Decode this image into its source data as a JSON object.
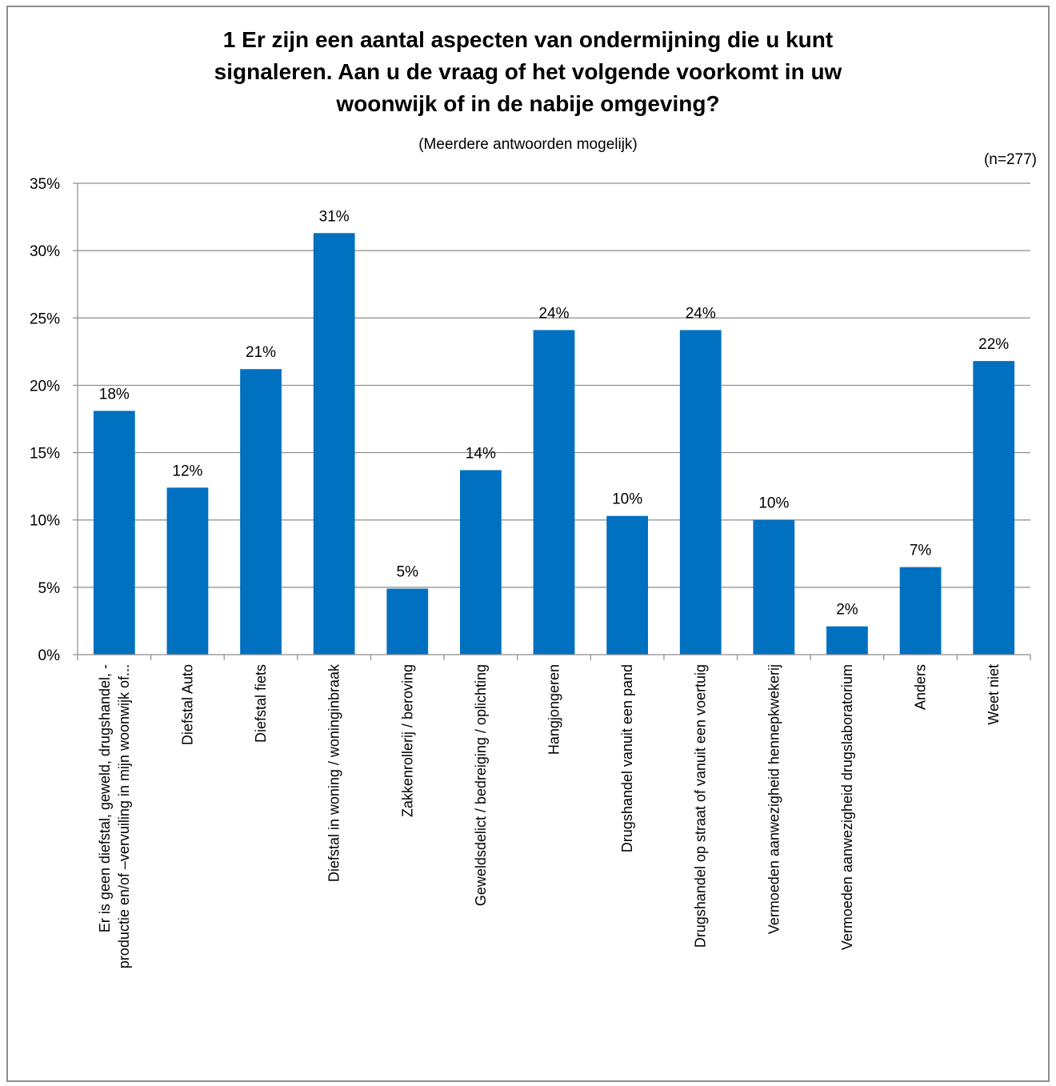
{
  "chart_data": {
    "type": "bar",
    "title": "1 Er zijn een aantal aspecten van ondermijning die u kunt signaleren. Aan u de vraag of het volgende voorkomt in uw woonwijk of in de nabije omgeving?",
    "title_lines": [
      "1 Er zijn een aantal aspecten van ondermijning die u kunt",
      "signaleren. Aan u de vraag of het volgende voorkomt in uw",
      "woonwijk of in de nabije omgeving?"
    ],
    "subtitle": "(Meerdere antwoorden mogelijk)",
    "note": "(n=277)",
    "xlabel": "",
    "ylabel": "",
    "ylim": [
      0,
      35
    ],
    "y_ticks": [
      0,
      5,
      10,
      15,
      20,
      25,
      30,
      35
    ],
    "y_tick_labels": [
      "0%",
      "5%",
      "10%",
      "15%",
      "20%",
      "25%",
      "30%",
      "35%"
    ],
    "grid": true,
    "legend": "none",
    "bar_color": "#0070c0",
    "categories": [
      "Er is geen diefstal, geweld, drugshandel, -productie en/of –vervuiling in mijn woonwijk of...",
      "Diefstal Auto",
      "Diefstal fiets",
      "Diefstal in woning / woninginbraak",
      "Zakkenrollerij / beroving",
      "Geweldsdelict / bedreiging / oplichting",
      "Hangjongeren",
      "Drugshandel vanuit een pand",
      "Drugshandel op straat of vanuit een voertuig",
      "Vermoeden aanwezigheid hennepkwekerij",
      "Vermoeden aanwezigheid drugslaboratorium",
      "Anders",
      "Weet niet"
    ],
    "category_label_lines": [
      [
        "Er is geen diefstal, geweld, drugshandel, -",
        "productie en/of –vervuiling in mijn woonwijk of..."
      ],
      [
        "Diefstal Auto"
      ],
      [
        "Diefstal fiets"
      ],
      [
        "Diefstal in woning / woninginbraak"
      ],
      [
        "Zakkenrollerij / beroving"
      ],
      [
        "Geweldsdelict / bedreiging / oplichting"
      ],
      [
        "Hangjongeren"
      ],
      [
        "Drugshandel vanuit een pand"
      ],
      [
        "Drugshandel op straat of vanuit een voertuig"
      ],
      [
        "Vermoeden aanwezigheid hennepkwekerij"
      ],
      [
        "Vermoeden aanwezigheid drugslaboratorium"
      ],
      [
        "Anders"
      ],
      [
        "Weet niet"
      ]
    ],
    "values": [
      18.1,
      12.4,
      21.2,
      31.3,
      4.9,
      13.7,
      24.1,
      10.3,
      24.1,
      10.0,
      2.1,
      6.5,
      21.8
    ],
    "data_labels": [
      "18%",
      "12%",
      "21%",
      "31%",
      "5%",
      "14%",
      "24%",
      "10%",
      "24%",
      "10%",
      "2%",
      "7%",
      "22%"
    ]
  }
}
